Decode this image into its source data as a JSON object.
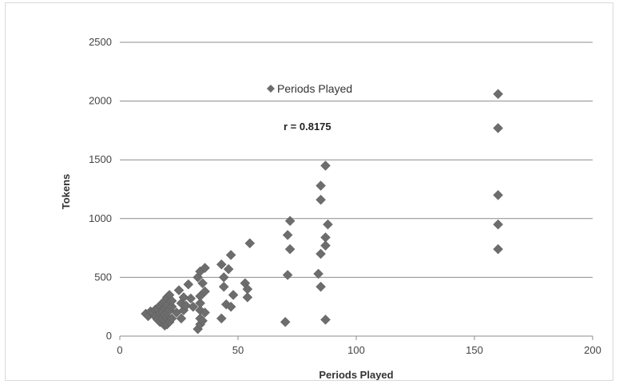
{
  "chart_data": {
    "type": "scatter",
    "xlabel": "Periods Played",
    "ylabel": "Tokens",
    "xlim": [
      0,
      200
    ],
    "ylim": [
      0,
      2500
    ],
    "xticks": [
      0,
      50,
      100,
      150,
      200
    ],
    "yticks": [
      0,
      500,
      1000,
      1500,
      2000,
      2500
    ],
    "grid": "horizontal",
    "legend_position": "top-center",
    "annotation": "r = 0.8175",
    "marker_color": "#6d6d6d",
    "series": [
      {
        "name": "Periods Played",
        "points": [
          [
            11,
            190
          ],
          [
            12,
            170
          ],
          [
            13,
            210
          ],
          [
            14,
            200
          ],
          [
            15,
            225
          ],
          [
            15,
            165
          ],
          [
            16,
            140
          ],
          [
            16,
            230
          ],
          [
            17,
            120
          ],
          [
            17,
            190
          ],
          [
            17,
            260
          ],
          [
            18,
            110
          ],
          [
            18,
            150
          ],
          [
            18,
            210
          ],
          [
            18,
            280
          ],
          [
            19,
            90
          ],
          [
            19,
            130
          ],
          [
            19,
            180
          ],
          [
            19,
            240
          ],
          [
            19,
            300
          ],
          [
            20,
            100
          ],
          [
            20,
            160
          ],
          [
            20,
            200
          ],
          [
            20,
            260
          ],
          [
            20,
            330
          ],
          [
            21,
            120
          ],
          [
            21,
            220
          ],
          [
            21,
            350
          ],
          [
            22,
            150
          ],
          [
            22,
            250
          ],
          [
            22,
            300
          ],
          [
            24,
            200
          ],
          [
            25,
            390
          ],
          [
            26,
            150
          ],
          [
            26,
            280
          ],
          [
            27,
            220
          ],
          [
            27,
            330
          ],
          [
            28,
            260
          ],
          [
            29,
            440
          ],
          [
            30,
            320
          ],
          [
            31,
            250
          ],
          [
            33,
            500
          ],
          [
            33,
            60
          ],
          [
            34,
            100
          ],
          [
            34,
            150
          ],
          [
            34,
            220
          ],
          [
            34,
            280
          ],
          [
            34,
            340
          ],
          [
            34,
            550
          ],
          [
            35,
            130
          ],
          [
            35,
            450
          ],
          [
            36,
            380
          ],
          [
            36,
            200
          ],
          [
            36,
            580
          ],
          [
            43,
            610
          ],
          [
            43,
            150
          ],
          [
            44,
            420
          ],
          [
            44,
            500
          ],
          [
            45,
            270
          ],
          [
            46,
            570
          ],
          [
            47,
            250
          ],
          [
            47,
            690
          ],
          [
            48,
            350
          ],
          [
            53,
            450
          ],
          [
            54,
            400
          ],
          [
            54,
            330
          ],
          [
            55,
            790
          ],
          [
            70,
            120
          ],
          [
            71,
            860
          ],
          [
            71,
            520
          ],
          [
            72,
            740
          ],
          [
            72,
            980
          ],
          [
            84,
            530
          ],
          [
            85,
            700
          ],
          [
            85,
            1280
          ],
          [
            85,
            1160
          ],
          [
            85,
            420
          ],
          [
            87,
            1450
          ],
          [
            87,
            140
          ],
          [
            87,
            770
          ],
          [
            87,
            840
          ],
          [
            88,
            950
          ],
          [
            160,
            2060
          ],
          [
            160,
            1770
          ],
          [
            160,
            1200
          ],
          [
            160,
            950
          ],
          [
            160,
            740
          ]
        ]
      }
    ]
  }
}
